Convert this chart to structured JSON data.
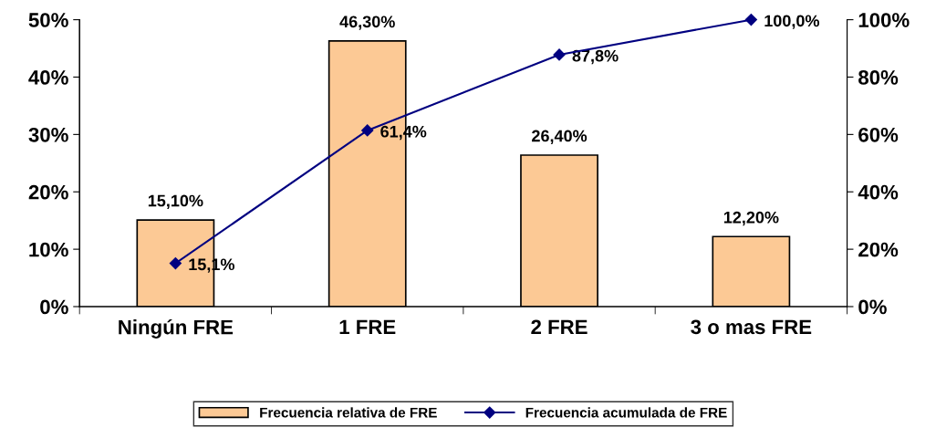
{
  "chart_data": {
    "type": "bar",
    "categories": [
      "Ningún FRE",
      "1 FRE",
      "2 FRE",
      "3 o mas FRE"
    ],
    "series": [
      {
        "name": "Frecuencia relativa de FRE",
        "color": "#fcc995",
        "values": [
          15.1,
          46.3,
          26.4,
          12.2
        ],
        "value_labels": [
          "15,10%",
          "46,30%",
          "26,40%",
          "12,20%"
        ]
      },
      {
        "type": "line",
        "axis": "y2",
        "name": "Frecuencia acumulada de FRE",
        "color": "#000080",
        "marker": "diamond",
        "values": [
          15.1,
          61.4,
          87.8,
          100.0
        ],
        "value_labels": [
          "15,1%",
          "61,4%",
          "87,8%",
          "100,0%"
        ]
      }
    ],
    "ylim": [
      0,
      50
    ],
    "yticks": [
      {
        "value": 0,
        "label": "0%"
      },
      {
        "value": 10,
        "label": "10%"
      },
      {
        "value": 20,
        "label": "20%"
      },
      {
        "value": 30,
        "label": "30%"
      },
      {
        "value": 40,
        "label": "40%"
      },
      {
        "value": 50,
        "label": "50%"
      }
    ],
    "y2lim": [
      0,
      100
    ],
    "y2ticks": [
      {
        "value": 0,
        "label": "0%"
      },
      {
        "value": 20,
        "label": "20%"
      },
      {
        "value": 40,
        "label": "40%"
      },
      {
        "value": 60,
        "label": "60%"
      },
      {
        "value": 80,
        "label": "80%"
      },
      {
        "value": 100,
        "label": "100%"
      }
    ],
    "legend": "bottom"
  }
}
